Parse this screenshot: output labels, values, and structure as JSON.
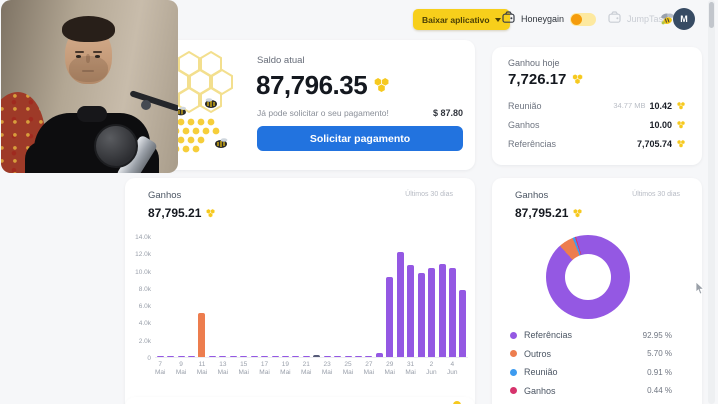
{
  "topbar": {
    "download_label": "Baixar aplicativo",
    "honeygain_label": "Honeygain",
    "jumptask_label": "JumpTask",
    "avatar_initial": "M"
  },
  "balance_card": {
    "title": "Saldo atual",
    "amount": "87,796.35",
    "payout_hint": "Já pode solicitar o seu pagamento!",
    "payout_value": "$ 87.80",
    "button_label": "Solicitar pagamento"
  },
  "today_card": {
    "title": "Ganhou hoje",
    "amount": "7,726.17",
    "rows": [
      {
        "label": "Reunião",
        "meta": "34.77 MB",
        "value": "10.42"
      },
      {
        "label": "Ganhos",
        "meta": "",
        "value": "10.00"
      },
      {
        "label": "Referências",
        "meta": "",
        "value": "7,705.74"
      }
    ]
  },
  "colors": {
    "accent_yellow": "#F7CF1B",
    "button_blue": "#2273DF",
    "honey": "#F6C91F",
    "bar_purple": "#9458E3",
    "bar_orange": "#ED7D4E",
    "bar_dark": "#565B78"
  },
  "chart_data": [
    {
      "type": "bar",
      "title": "Ganhos",
      "period": "Últimos 30 dias",
      "total": "87,795.21",
      "ylabel_ticks": [
        "14.0k",
        "12.0k",
        "10.0k",
        "8.0k",
        "6.0k",
        "4.0k",
        "2.0k",
        "0"
      ],
      "ymax": 14000,
      "grid": false,
      "label_every": 2,
      "categories": [
        "7 Mai",
        "8 Mai",
        "9 Mai",
        "10 Mai",
        "11 Mai",
        "12 Mai",
        "13 Mai",
        "14 Mai",
        "15 Mai",
        "16 Mai",
        "17 Mai",
        "18 Mai",
        "19 Mai",
        "20 Mai",
        "21 Mai",
        "22 Mai",
        "23 Mai",
        "24 Mai",
        "25 Mai",
        "26 Mai",
        "27 Mai",
        "28 Mai",
        "29 Mai",
        "30 Mai",
        "31 Mai",
        "1 Jun",
        "2 Jun",
        "3 Jun",
        "4 Jun",
        "5 Jun"
      ],
      "values": [
        60,
        60,
        55,
        60,
        5100,
        80,
        80,
        90,
        80,
        70,
        60,
        60,
        70,
        60,
        60,
        180,
        90,
        80,
        90,
        60,
        60,
        420,
        9300,
        12200,
        10600,
        9700,
        10250,
        10750,
        10250,
        7700
      ],
      "bar_color": "#9458E3",
      "highlight_colors": {
        "4": "#ED7D4E",
        "15": "#565B78"
      }
    },
    {
      "type": "pie",
      "title": "Ganhos",
      "period": "Últimos 30 dias",
      "total": "87,795.21",
      "legend_position": "bottom",
      "start_angle_deg": 318,
      "segments": [
        {
          "label": "Referências",
          "pct": 92.95,
          "pct_label": "92.95 %",
          "color": "#9458E3"
        },
        {
          "label": "Outros",
          "pct": 5.7,
          "pct_label": "5.70 %",
          "color": "#ED7D4E"
        },
        {
          "label": "Reunião",
          "pct": 0.91,
          "pct_label": "0.91 %",
          "color": "#3D9BEF"
        },
        {
          "label": "Ganhos",
          "pct": 0.44,
          "pct_label": "0.44 %",
          "color": "#D6336C"
        }
      ]
    }
  ]
}
